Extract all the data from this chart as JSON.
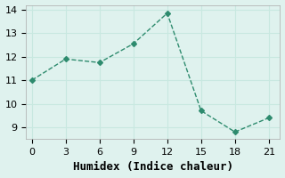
{
  "x": [
    0,
    3,
    6,
    9,
    12,
    15,
    18,
    21
  ],
  "y": [
    11.0,
    11.9,
    11.75,
    12.55,
    13.85,
    9.7,
    8.8,
    9.4
  ],
  "line_color": "#2e8b6e",
  "marker": "D",
  "marker_size": 3,
  "xlabel": "Humidex (Indice chaleur)",
  "xlim": [
    -0.5,
    22
  ],
  "ylim": [
    8.5,
    14.2
  ],
  "xticks": [
    0,
    3,
    6,
    9,
    12,
    15,
    18,
    21
  ],
  "yticks": [
    9,
    10,
    11,
    12,
    13,
    14
  ],
  "grid_color": "#c8e8e0",
  "bg_color": "#dff2ee",
  "title_fontsize": 9,
  "label_fontsize": 9
}
